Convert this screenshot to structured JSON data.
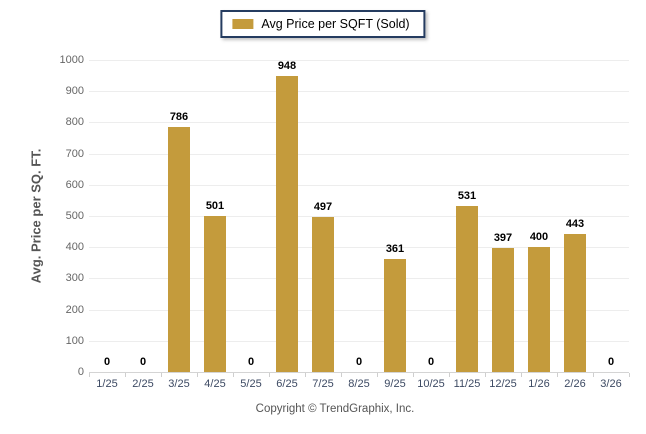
{
  "chart_data": {
    "type": "bar",
    "legend": "Avg Price per SQFT (Sold)",
    "legend_position": "top-center",
    "categories": [
      "1/25",
      "2/25",
      "3/25",
      "4/25",
      "5/25",
      "6/25",
      "7/25",
      "8/25",
      "9/25",
      "10/25",
      "11/25",
      "12/25",
      "1/26",
      "2/26",
      "3/26"
    ],
    "values": [
      0,
      0,
      786,
      501,
      0,
      948,
      497,
      0,
      361,
      0,
      531,
      397,
      400,
      443,
      0
    ],
    "ylabel": "Avg. Price per SQ. FT.",
    "xlabel": "",
    "ylim": [
      0,
      1000
    ],
    "ytick_step": 100,
    "grid": "horizontal",
    "bar_color": "#C49B3C",
    "value_labels_shown": true
  },
  "footer": {
    "copyright": "Copyright © TrendGraphix, Inc."
  }
}
